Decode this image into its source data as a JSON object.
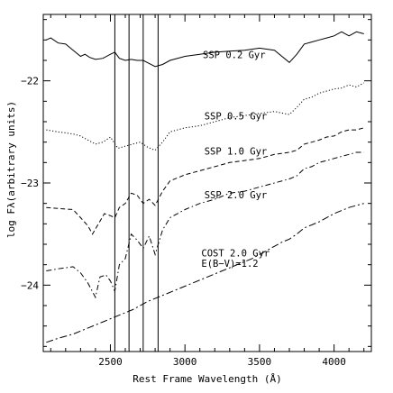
{
  "chart_data": {
    "type": "line",
    "title": "",
    "xlabel": "Rest Frame Wavelength (Å)",
    "ylabel": "log Fλ(arbitrary units)",
    "xlim": [
      2050,
      4250
    ],
    "ylim": [
      -24.65,
      -21.35
    ],
    "xticks": [
      2500,
      3000,
      3500,
      4000
    ],
    "yticks": [
      -22,
      -23,
      -24
    ],
    "xtick_labels": [
      "2500",
      "3000",
      "3500",
      "4000"
    ],
    "ytick_labels": [
      "−22",
      "−23",
      "−24"
    ],
    "grid": false,
    "vertical_lines": [
      2530,
      2625,
      2720,
      2820
    ],
    "series": [
      {
        "name": "SSP 0.2 Gyr",
        "style": "solid",
        "points": [
          [
            2070,
            -21.6
          ],
          [
            2100,
            -21.58
          ],
          [
            2150,
            -21.63
          ],
          [
            2200,
            -21.64
          ],
          [
            2250,
            -21.7
          ],
          [
            2300,
            -21.76
          ],
          [
            2330,
            -21.74
          ],
          [
            2360,
            -21.77
          ],
          [
            2400,
            -21.79
          ],
          [
            2450,
            -21.78
          ],
          [
            2500,
            -21.74
          ],
          [
            2530,
            -21.72
          ],
          [
            2560,
            -21.78
          ],
          [
            2600,
            -21.8
          ],
          [
            2640,
            -21.79
          ],
          [
            2680,
            -21.8
          ],
          [
            2720,
            -21.8
          ],
          [
            2760,
            -21.83
          ],
          [
            2800,
            -21.86
          ],
          [
            2850,
            -21.84
          ],
          [
            2900,
            -21.8
          ],
          [
            3000,
            -21.76
          ],
          [
            3100,
            -21.74
          ],
          [
            3200,
            -21.72
          ],
          [
            3300,
            -21.71
          ],
          [
            3400,
            -21.7
          ],
          [
            3500,
            -21.68
          ],
          [
            3600,
            -21.7
          ],
          [
            3700,
            -21.82
          ],
          [
            3750,
            -21.74
          ],
          [
            3800,
            -21.64
          ],
          [
            3850,
            -21.62
          ],
          [
            3900,
            -21.6
          ],
          [
            3950,
            -21.58
          ],
          [
            4000,
            -21.56
          ],
          [
            4050,
            -21.52
          ],
          [
            4100,
            -21.56
          ],
          [
            4150,
            -21.52
          ],
          [
            4200,
            -21.54
          ]
        ]
      },
      {
        "name": "SSP 0.5 Gyr",
        "style": "dotted",
        "points": [
          [
            2070,
            -22.48
          ],
          [
            2150,
            -22.5
          ],
          [
            2250,
            -22.52
          ],
          [
            2300,
            -22.54
          ],
          [
            2350,
            -22.58
          ],
          [
            2400,
            -22.62
          ],
          [
            2450,
            -22.6
          ],
          [
            2500,
            -22.55
          ],
          [
            2550,
            -22.66
          ],
          [
            2600,
            -22.64
          ],
          [
            2650,
            -22.62
          ],
          [
            2700,
            -22.6
          ],
          [
            2750,
            -22.65
          ],
          [
            2800,
            -22.68
          ],
          [
            2850,
            -22.6
          ],
          [
            2900,
            -22.5
          ],
          [
            3000,
            -22.46
          ],
          [
            3100,
            -22.44
          ],
          [
            3200,
            -22.4
          ],
          [
            3300,
            -22.36
          ],
          [
            3400,
            -22.34
          ],
          [
            3500,
            -22.32
          ],
          [
            3600,
            -22.3
          ],
          [
            3700,
            -22.33
          ],
          [
            3750,
            -22.26
          ],
          [
            3800,
            -22.18
          ],
          [
            3850,
            -22.16
          ],
          [
            3900,
            -22.12
          ],
          [
            3950,
            -22.1
          ],
          [
            4000,
            -22.08
          ],
          [
            4050,
            -22.07
          ],
          [
            4100,
            -22.04
          ],
          [
            4150,
            -22.06
          ],
          [
            4200,
            -22.02
          ]
        ]
      },
      {
        "name": "SSP 1.0 Gyr",
        "style": "dashed",
        "points": [
          [
            2070,
            -23.24
          ],
          [
            2150,
            -23.25
          ],
          [
            2250,
            -23.26
          ],
          [
            2300,
            -23.34
          ],
          [
            2350,
            -23.42
          ],
          [
            2380,
            -23.5
          ],
          [
            2420,
            -23.4
          ],
          [
            2460,
            -23.3
          ],
          [
            2500,
            -23.32
          ],
          [
            2530,
            -23.34
          ],
          [
            2560,
            -23.24
          ],
          [
            2600,
            -23.2
          ],
          [
            2640,
            -23.1
          ],
          [
            2680,
            -23.12
          ],
          [
            2720,
            -23.2
          ],
          [
            2760,
            -23.16
          ],
          [
            2800,
            -23.22
          ],
          [
            2850,
            -23.08
          ],
          [
            2900,
            -22.98
          ],
          [
            3000,
            -22.92
          ],
          [
            3100,
            -22.88
          ],
          [
            3200,
            -22.84
          ],
          [
            3300,
            -22.8
          ],
          [
            3400,
            -22.78
          ],
          [
            3500,
            -22.76
          ],
          [
            3600,
            -22.72
          ],
          [
            3700,
            -22.7
          ],
          [
            3750,
            -22.68
          ],
          [
            3800,
            -22.62
          ],
          [
            3850,
            -22.6
          ],
          [
            3900,
            -22.58
          ],
          [
            3950,
            -22.55
          ],
          [
            4000,
            -22.54
          ],
          [
            4050,
            -22.5
          ],
          [
            4100,
            -22.48
          ],
          [
            4150,
            -22.48
          ],
          [
            4200,
            -22.46
          ]
        ]
      },
      {
        "name": "SSP 2.0 Gyr",
        "style": "dash-dot",
        "points": [
          [
            2070,
            -23.86
          ],
          [
            2150,
            -23.84
          ],
          [
            2250,
            -23.82
          ],
          [
            2300,
            -23.88
          ],
          [
            2350,
            -23.98
          ],
          [
            2400,
            -24.12
          ],
          [
            2430,
            -23.92
          ],
          [
            2470,
            -23.9
          ],
          [
            2500,
            -23.96
          ],
          [
            2530,
            -24.06
          ],
          [
            2560,
            -23.8
          ],
          [
            2600,
            -23.74
          ],
          [
            2640,
            -23.5
          ],
          [
            2680,
            -23.56
          ],
          [
            2720,
            -23.64
          ],
          [
            2760,
            -23.52
          ],
          [
            2800,
            -23.7
          ],
          [
            2850,
            -23.46
          ],
          [
            2900,
            -23.34
          ],
          [
            3000,
            -23.26
          ],
          [
            3100,
            -23.2
          ],
          [
            3200,
            -23.16
          ],
          [
            3300,
            -23.1
          ],
          [
            3400,
            -23.08
          ],
          [
            3500,
            -23.04
          ],
          [
            3600,
            -23.0
          ],
          [
            3700,
            -22.96
          ],
          [
            3750,
            -22.93
          ],
          [
            3800,
            -22.86
          ],
          [
            3850,
            -22.84
          ],
          [
            3900,
            -22.8
          ],
          [
            3950,
            -22.78
          ],
          [
            4000,
            -22.76
          ],
          [
            4050,
            -22.74
          ],
          [
            4100,
            -22.72
          ],
          [
            4150,
            -22.7
          ],
          [
            4200,
            -22.7
          ]
        ]
      },
      {
        "name": "COST 2.0 Gyr E(B−V)=1.2",
        "style": "long-dash-dot",
        "points": [
          [
            2070,
            -24.56
          ],
          [
            2150,
            -24.52
          ],
          [
            2250,
            -24.48
          ],
          [
            2350,
            -24.42
          ],
          [
            2450,
            -24.36
          ],
          [
            2550,
            -24.3
          ],
          [
            2650,
            -24.24
          ],
          [
            2750,
            -24.16
          ],
          [
            2850,
            -24.1
          ],
          [
            2950,
            -24.04
          ],
          [
            3050,
            -23.98
          ],
          [
            3150,
            -23.92
          ],
          [
            3250,
            -23.86
          ],
          [
            3350,
            -23.8
          ],
          [
            3450,
            -23.74
          ],
          [
            3550,
            -23.66
          ],
          [
            3650,
            -23.58
          ],
          [
            3700,
            -23.55
          ],
          [
            3750,
            -23.5
          ],
          [
            3800,
            -23.44
          ],
          [
            3900,
            -23.38
          ],
          [
            4000,
            -23.3
          ],
          [
            4100,
            -23.24
          ],
          [
            4200,
            -23.2
          ]
        ]
      }
    ],
    "labels": [
      {
        "text": "SSP 0.2 Gyr",
        "x": 3120,
        "y": -21.78
      },
      {
        "text": "SSP 0.5 Gyr",
        "x": 3130,
        "y": -22.38
      },
      {
        "text": "SSP 1.0 Gyr",
        "x": 3130,
        "y": -22.72
      },
      {
        "text": "SSP 2.0 Gyr",
        "x": 3130,
        "y": -23.15
      },
      {
        "text": "COST 2.0 Gyr",
        "x": 3110,
        "y": -23.72
      },
      {
        "text": "E(B−V)=1.2",
        "x": 3110,
        "y": -23.82
      }
    ]
  }
}
